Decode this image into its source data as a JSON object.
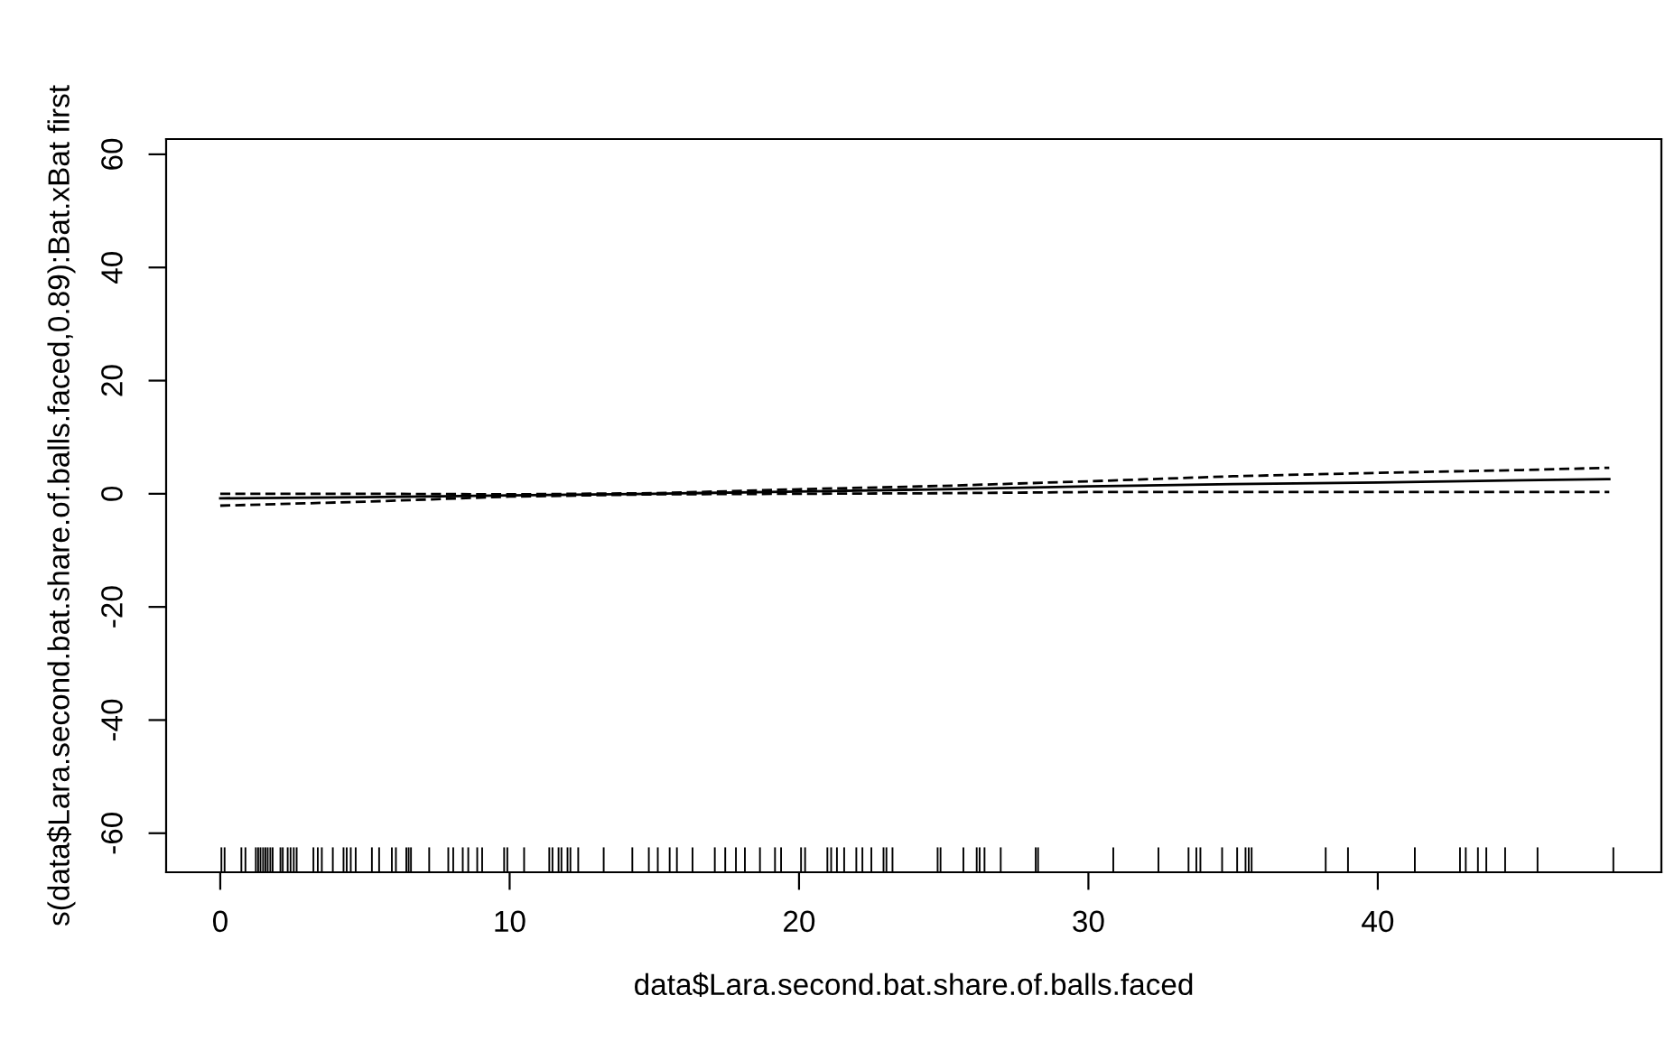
{
  "chart_data": {
    "type": "line",
    "xlabel": "data$Lara.second.bat.share.of.balls.faced",
    "ylabel": "s(data$Lara.second.bat.share.of.balls.faced,0.89):Bat.xBat first",
    "xlim": [
      -1.87,
      49.8
    ],
    "ylim": [
      -66.9,
      62.7
    ],
    "xticks": [
      0,
      10,
      20,
      30,
      40
    ],
    "yticks": [
      -60,
      -40,
      -20,
      0,
      20,
      40,
      60
    ],
    "grid": false,
    "legend": false,
    "series": [
      {
        "line_style": "solid",
        "color": "#000000",
        "x": [
          0,
          5,
          10,
          15,
          20,
          25,
          30,
          35,
          40,
          45,
          48
        ],
        "values": [
          -0.8,
          -0.6,
          -0.3,
          0,
          0.4,
          0.8,
          1.3,
          1.7,
          2.0,
          2.4,
          2.6
        ]
      },
      {
        "line_style": "dashed",
        "color": "#000000",
        "x": [
          0,
          5,
          10,
          15,
          20,
          25,
          30,
          35,
          40,
          45,
          48
        ],
        "values": [
          0,
          0,
          -0.1,
          0.1,
          0.8,
          1.4,
          2.2,
          3.1,
          3.7,
          4.2,
          4.6
        ]
      },
      {
        "line_style": "dashed",
        "color": "#000000",
        "x": [
          0,
          5,
          10,
          15,
          20,
          25,
          30,
          35,
          40,
          45,
          48
        ],
        "values": [
          -2.1,
          -1.4,
          -0.5,
          -0.1,
          0,
          0.1,
          0.3,
          0.3,
          0.3,
          0.3,
          0.3
        ]
      },
      {
        "type": "bar",
        "color": "#000000",
        "x": [
          0.04,
          0.15,
          0.73,
          0.87,
          1.23,
          1.31,
          1.39,
          1.48,
          1.56,
          1.64,
          1.73,
          1.81,
          2.08,
          2.16,
          2.33,
          2.43,
          2.54,
          2.64,
          3.22,
          3.37,
          3.51,
          3.89,
          4.26,
          4.37,
          4.51,
          4.68,
          5.24,
          5.49,
          5.93,
          6.07,
          6.43,
          6.51,
          6.59,
          7.22,
          7.88,
          8.05,
          8.38,
          8.57,
          8.88,
          9.05,
          9.81,
          9.92,
          10.5,
          11.37,
          11.48,
          11.69,
          11.79,
          12.0,
          12.1,
          12.37,
          13.25,
          14.24,
          14.81,
          15.12,
          15.53,
          15.78,
          16.32,
          17.09,
          17.45,
          17.82,
          18.13,
          18.65,
          19.17,
          19.38,
          20.07,
          20.21,
          20.98,
          21.11,
          21.31,
          21.56,
          21.98,
          22.19,
          22.5,
          22.92,
          23.02,
          23.23,
          24.79,
          24.89,
          25.68,
          26.14,
          26.24,
          26.41,
          26.97,
          28.18,
          28.26,
          30.86,
          32.42,
          33.46,
          33.73,
          33.87,
          34.62,
          35.14,
          35.43,
          35.54,
          35.64,
          38.2,
          38.97,
          41.28,
          42.84,
          43.04,
          43.46,
          43.75,
          44.4,
          45.52,
          48.14
        ],
        "base": [
          -66.9,
          -66.9,
          -66.9,
          -66.9,
          -66.9,
          -66.9,
          -66.9,
          -66.9,
          -66.9,
          -66.9,
          -66.9,
          -66.9,
          -66.9,
          -66.9,
          -66.9,
          -66.9,
          -66.9,
          -66.9,
          -66.9,
          -66.9,
          -66.9,
          -66.9,
          -66.9,
          -66.9,
          -66.9,
          -66.9,
          -66.9,
          -66.9,
          -66.9,
          -66.9,
          -66.9,
          -66.9,
          -66.9,
          -66.9,
          -66.9,
          -66.9,
          -66.9,
          -66.9,
          -66.9,
          -66.9,
          -66.9,
          -66.9,
          -66.9,
          -66.9,
          -66.9,
          -66.9,
          -66.9,
          -66.9,
          -66.9,
          -66.9,
          -66.9,
          -66.9,
          -66.9,
          -66.9,
          -66.9,
          -66.9,
          -66.9,
          -66.9,
          -66.9,
          -66.9,
          -66.9,
          -66.9,
          -66.9,
          -66.9,
          -66.9,
          -66.9,
          -66.9,
          -66.9,
          -66.9,
          -66.9,
          -66.9,
          -66.9,
          -66.9,
          -66.9,
          -66.9,
          -66.9,
          -66.9,
          -66.9,
          -66.9,
          -66.9,
          -66.9,
          -66.9,
          -66.9,
          -66.9,
          -66.9,
          -66.9,
          -66.9,
          -66.9,
          -66.9,
          -66.9,
          -66.9,
          -66.9,
          -66.9,
          -66.9,
          -66.9,
          -66.9,
          -66.9,
          -66.9,
          -66.9,
          -66.9,
          -66.9,
          -66.9,
          -66.9,
          -66.9,
          -66.9
        ],
        "values": [
          4.4,
          4.4,
          4.4,
          4.4,
          4.4,
          4.4,
          4.4,
          4.4,
          4.4,
          4.4,
          4.4,
          4.4,
          4.4,
          4.4,
          4.4,
          4.4,
          4.4,
          4.4,
          4.4,
          4.4,
          4.4,
          4.4,
          4.4,
          4.4,
          4.4,
          4.4,
          4.4,
          4.4,
          4.4,
          4.4,
          4.4,
          4.4,
          4.4,
          4.4,
          4.4,
          4.4,
          4.4,
          4.4,
          4.4,
          4.4,
          4.4,
          4.4,
          4.4,
          4.4,
          4.4,
          4.4,
          4.4,
          4.4,
          4.4,
          4.4,
          4.4,
          4.4,
          4.4,
          4.4,
          4.4,
          4.4,
          4.4,
          4.4,
          4.4,
          4.4,
          4.4,
          4.4,
          4.4,
          4.4,
          4.4,
          4.4,
          4.4,
          4.4,
          4.4,
          4.4,
          4.4,
          4.4,
          4.4,
          4.4,
          4.4,
          4.4,
          4.4,
          4.4,
          4.4,
          4.4,
          4.4,
          4.4,
          4.4,
          4.4,
          4.4,
          4.4,
          4.4,
          4.4,
          4.4,
          4.4,
          4.4,
          4.4,
          4.4,
          4.4,
          4.4,
          4.4,
          4.4,
          4.4,
          4.4,
          4.4,
          4.4,
          4.4,
          4.4,
          4.4,
          4.4
        ]
      }
    ]
  }
}
